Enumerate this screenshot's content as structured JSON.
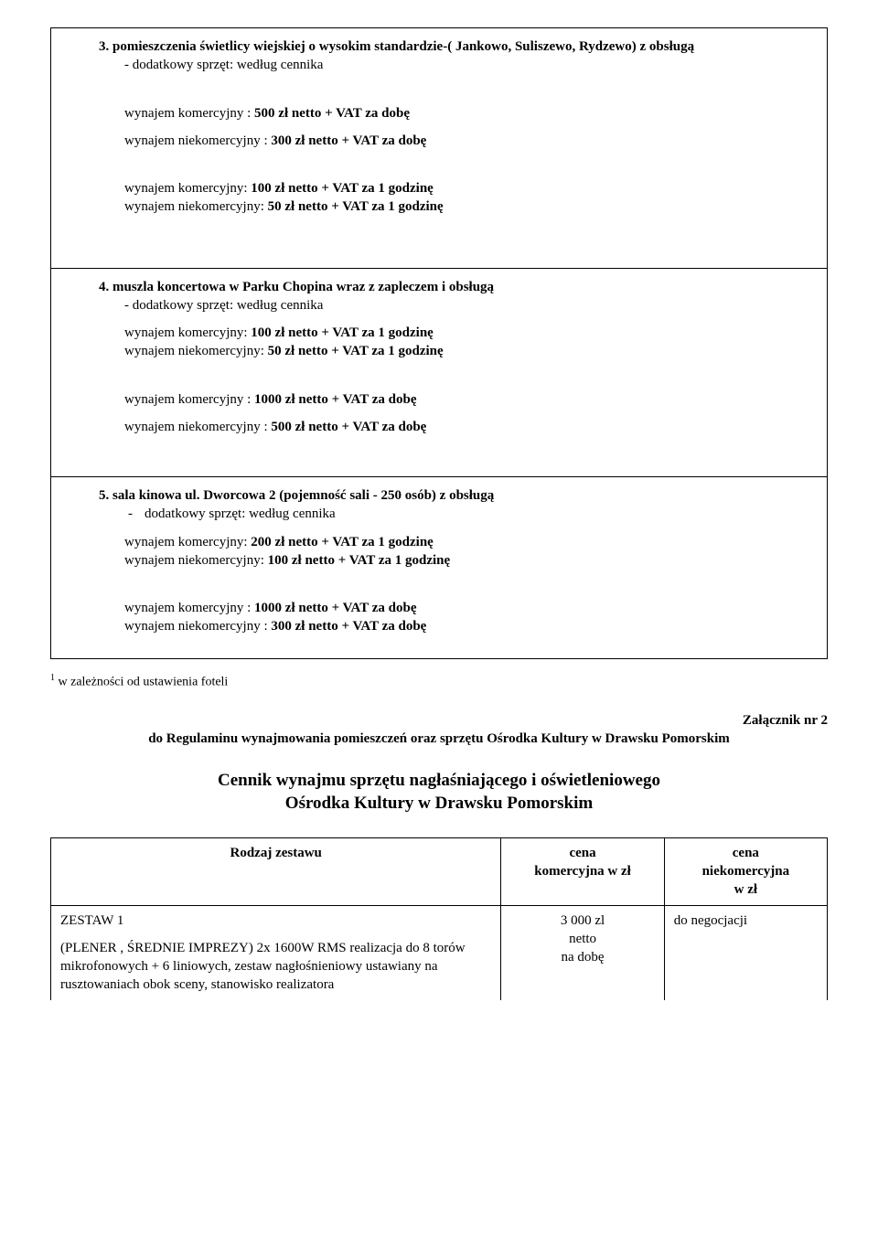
{
  "section3": {
    "number": "3.",
    "title": "pomieszczenia  świetlicy  wiejskiej o wysokim  standardzie-( Jankowo, Suliszewo, Rydzewo)  z obsługą",
    "subtitle": "- dodatkowy sprzęt: według cennika",
    "line1": "wynajem komercyjny :  500 zł netto + VAT za dobę",
    "line2": "wynajem niekomercyjny :  300 zł netto + VAT za dobę",
    "line3": "wynajem komercyjny:  100 zł netto + VAT za 1 godzinę",
    "line4": "wynajem niekomercyjny:  50 zł netto + VAT za 1 godzinę"
  },
  "section4": {
    "number": "4.",
    "title": "muszla  koncertowa w Parku Chopina wraz z zapleczem i obsługą",
    "subtitle": "- dodatkowy sprzęt: według cennika",
    "line1": "wynajem komercyjny:  100 zł netto + VAT za 1 godzinę",
    "line2": "wynajem niekomercyjny:  50 zł netto + VAT za 1 godzinę",
    "line3": "wynajem komercyjny :  1000 zł netto + VAT za dobę",
    "line4": "wynajem niekomercyjny :  500 zł netto + VAT za dobę"
  },
  "section5": {
    "number": "5.",
    "title": "sala kinowa  ul. Dworcowa 2  (pojemność sali - 250 osób)  z obsługą",
    "subtitle": "dodatkowy sprzęt: według cennika",
    "line1": "wynajem komercyjny:  200 zł netto + VAT za 1 godzinę",
    "line2": "wynajem niekomercyjny:  100 zł netto + VAT za 1 godzinę",
    "line3": "wynajem komercyjny :  1000 zł netto + VAT za dobę",
    "line4": "wynajem niekomercyjny :  300 zł netto + VAT za dobę"
  },
  "footnote_marker": "1",
  "footnote_text": " w zależności od ustawienia foteli",
  "attachment_right": "Załącznik nr 2",
  "attachment_sub": "do Regulaminu wynajmowania pomieszczeń oraz sprzętu Ośrodka Kultury w Drawsku Pomorskim",
  "main_title_1": "Cennik wynajmu sprzętu nagłaśniającego i oświetleniowego",
  "main_title_2": "Ośrodka Kultury w Drawsku Pomorskim",
  "table": {
    "th1": "Rodzaj zestawu",
    "th2a": "cena",
    "th2b": "komercyjna w zł",
    "th3a": "cena",
    "th3b": "niekomercyjna",
    "th3c": "w zł",
    "row1_name_line1": "ZESTAW 1",
    "row1_name_line2": "(PLENER , ŚREDNIE IMPREZY)  2x 1600W RMS realizacja do 8 torów mikrofonowych + 6 liniowych, zestaw nagłośnieniowy ustawiany na rusztowaniach obok sceny,  stanowisko realizatora",
    "row1_price": "3 000 zl",
    "row1_sub1": "netto",
    "row1_sub2": "na dobę",
    "row1_p2": "do negocjacji"
  }
}
